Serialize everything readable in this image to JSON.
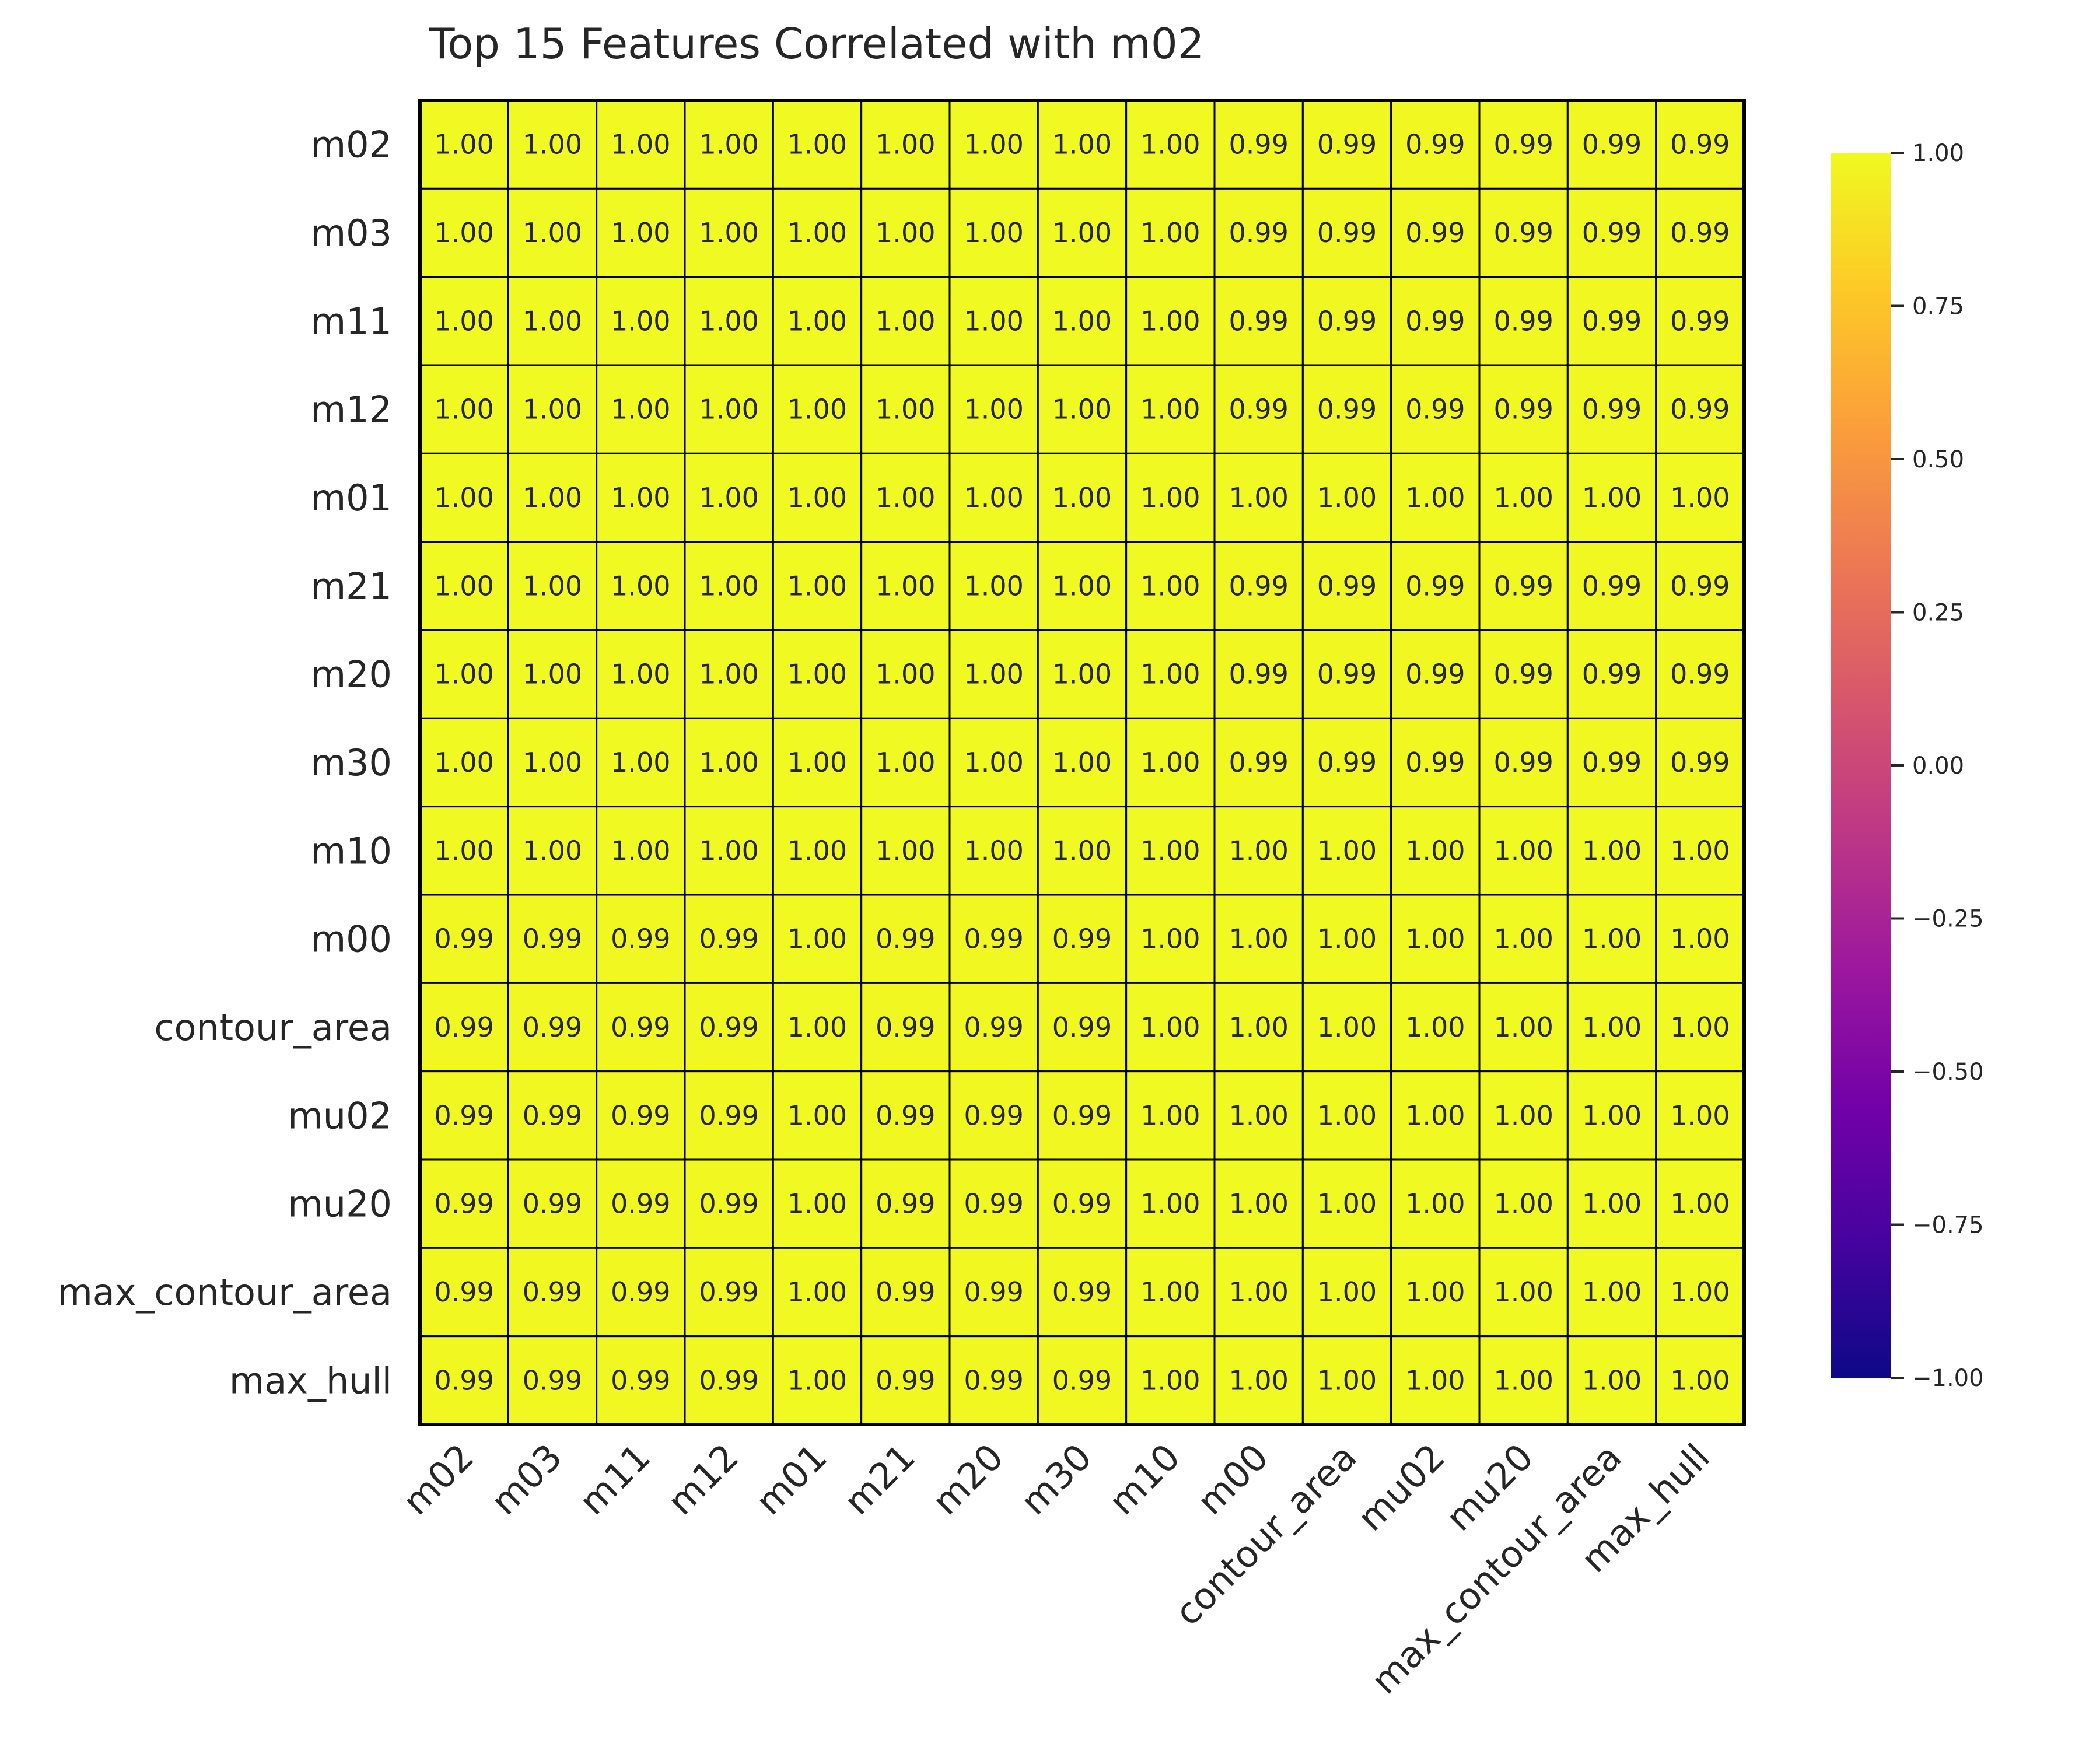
{
  "chart_data": {
    "type": "heatmap",
    "title": "Top 15 Features Correlated with m02",
    "row_labels": [
      "m02",
      "m03",
      "m11",
      "m12",
      "m01",
      "m21",
      "m20",
      "m30",
      "m10",
      "m00",
      "contour_area",
      "mu02",
      "mu20",
      "max_contour_area",
      "max_hull"
    ],
    "col_labels": [
      "m02",
      "m03",
      "m11",
      "m12",
      "m01",
      "m21",
      "m20",
      "m30",
      "m10",
      "m00",
      "contour_area",
      "mu02",
      "mu20",
      "max_contour_area",
      "max_hull"
    ],
    "values": [
      [
        1.0,
        1.0,
        1.0,
        1.0,
        1.0,
        1.0,
        1.0,
        1.0,
        1.0,
        0.99,
        0.99,
        0.99,
        0.99,
        0.99,
        0.99
      ],
      [
        1.0,
        1.0,
        1.0,
        1.0,
        1.0,
        1.0,
        1.0,
        1.0,
        1.0,
        0.99,
        0.99,
        0.99,
        0.99,
        0.99,
        0.99
      ],
      [
        1.0,
        1.0,
        1.0,
        1.0,
        1.0,
        1.0,
        1.0,
        1.0,
        1.0,
        0.99,
        0.99,
        0.99,
        0.99,
        0.99,
        0.99
      ],
      [
        1.0,
        1.0,
        1.0,
        1.0,
        1.0,
        1.0,
        1.0,
        1.0,
        1.0,
        0.99,
        0.99,
        0.99,
        0.99,
        0.99,
        0.99
      ],
      [
        1.0,
        1.0,
        1.0,
        1.0,
        1.0,
        1.0,
        1.0,
        1.0,
        1.0,
        1.0,
        1.0,
        1.0,
        1.0,
        1.0,
        1.0
      ],
      [
        1.0,
        1.0,
        1.0,
        1.0,
        1.0,
        1.0,
        1.0,
        1.0,
        1.0,
        0.99,
        0.99,
        0.99,
        0.99,
        0.99,
        0.99
      ],
      [
        1.0,
        1.0,
        1.0,
        1.0,
        1.0,
        1.0,
        1.0,
        1.0,
        1.0,
        0.99,
        0.99,
        0.99,
        0.99,
        0.99,
        0.99
      ],
      [
        1.0,
        1.0,
        1.0,
        1.0,
        1.0,
        1.0,
        1.0,
        1.0,
        1.0,
        0.99,
        0.99,
        0.99,
        0.99,
        0.99,
        0.99
      ],
      [
        1.0,
        1.0,
        1.0,
        1.0,
        1.0,
        1.0,
        1.0,
        1.0,
        1.0,
        1.0,
        1.0,
        1.0,
        1.0,
        1.0,
        1.0
      ],
      [
        0.99,
        0.99,
        0.99,
        0.99,
        1.0,
        0.99,
        0.99,
        0.99,
        1.0,
        1.0,
        1.0,
        1.0,
        1.0,
        1.0,
        1.0
      ],
      [
        0.99,
        0.99,
        0.99,
        0.99,
        1.0,
        0.99,
        0.99,
        0.99,
        1.0,
        1.0,
        1.0,
        1.0,
        1.0,
        1.0,
        1.0
      ],
      [
        0.99,
        0.99,
        0.99,
        0.99,
        1.0,
        0.99,
        0.99,
        0.99,
        1.0,
        1.0,
        1.0,
        1.0,
        1.0,
        1.0,
        1.0
      ],
      [
        0.99,
        0.99,
        0.99,
        0.99,
        1.0,
        0.99,
        0.99,
        0.99,
        1.0,
        1.0,
        1.0,
        1.0,
        1.0,
        1.0,
        1.0
      ],
      [
        0.99,
        0.99,
        0.99,
        0.99,
        1.0,
        0.99,
        0.99,
        0.99,
        1.0,
        1.0,
        1.0,
        1.0,
        1.0,
        1.0,
        1.0
      ],
      [
        0.99,
        0.99,
        0.99,
        0.99,
        1.0,
        0.99,
        0.99,
        0.99,
        1.0,
        1.0,
        1.0,
        1.0,
        1.0,
        1.0,
        1.0
      ]
    ],
    "value_format": "2 decimals",
    "colormap": "plasma",
    "colorbar": {
      "vmin": -1.0,
      "vmax": 1.0,
      "ticks": [
        "1.00",
        "0.75",
        "0.50",
        "0.25",
        "0.00",
        "−0.25",
        "−0.50",
        "−0.75",
        "−1.00"
      ],
      "tick_values": [
        1.0,
        0.75,
        0.5,
        0.25,
        0.0,
        -0.25,
        -0.5,
        -0.75,
        -1.0
      ],
      "placement": "right"
    },
    "cell_edge_color": "#000000",
    "colormap_stops": [
      "#0d0887",
      "#46039f",
      "#7201a8",
      "#9c179e",
      "#bd3786",
      "#d8576b",
      "#ed7953",
      "#fb9f3a",
      "#fdca26",
      "#f0f921"
    ]
  }
}
